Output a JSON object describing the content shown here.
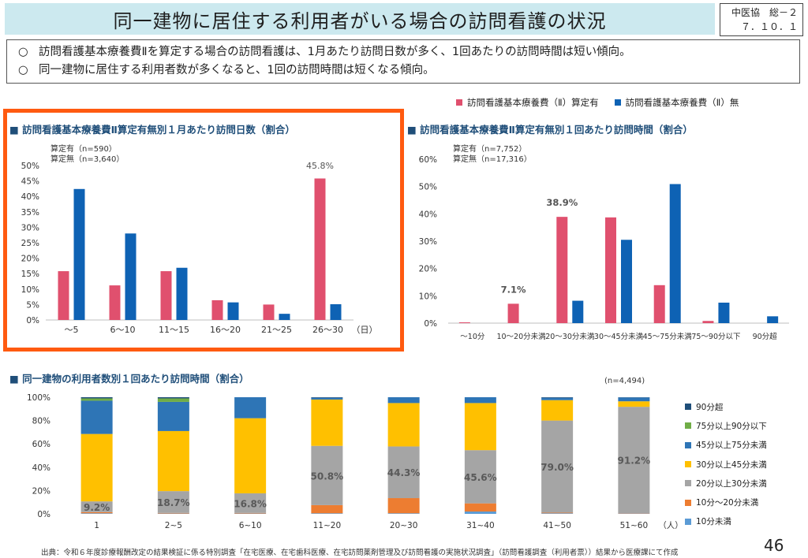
{
  "header": {
    "title": "同一建物に居住する利用者がいる場合の訪問看護の状況",
    "meeting_line1": "中医協　総－２",
    "meeting_line2": "７．１０．１"
  },
  "summary": {
    "bullet": "○",
    "lines": [
      "訪問看護基本療養費Ⅱを算定する場合の訪問看護は、1月あたり訪問日数が多く、1回あたりの訪問時間は短い傾向。",
      "同一建物に居住する利用者数が多くなると、1回の訪問時間は短くなる傾向。"
    ]
  },
  "legend_top": {
    "items": [
      {
        "label": "訪問看護基本療養費（Ⅱ）算定有",
        "color": "#e0506e"
      },
      {
        "label": "訪問看護基本療養費（Ⅱ）無",
        "color": "#0e62b4"
      }
    ]
  },
  "page_number": "46",
  "source": "出典：令和６年度診療報酬改定の結果検証に係る特別調査「在宅医療、在宅歯科医療、在宅訪問薬剤管理及び訪問看護の実施状況調査」（訪問看護調査（利用者票））結果から医療課にて作成",
  "chart_data": [
    {
      "type": "bar",
      "title": "■ 訪問看護基本療養費Ⅱ算定有無別１月あたり訪問日数（割合）",
      "n_labels": [
        "算定有（n=590）",
        "算定無（n=3,640）"
      ],
      "categories": [
        "～5",
        "6～10",
        "11～15",
        "16～20",
        "21～25",
        "26～30"
      ],
      "xunit": "（日）",
      "series": [
        {
          "name": "算定有",
          "color": "#e0506e",
          "values": [
            15.8,
            11.2,
            15.8,
            6.4,
            5.0,
            45.8
          ]
        },
        {
          "name": "算定無",
          "color": "#0e62b4",
          "values": [
            42.4,
            28.0,
            16.9,
            5.7,
            2.0,
            5.1
          ]
        }
      ],
      "ylim": [
        0,
        50
      ],
      "yticks": [
        0,
        5,
        10,
        15,
        20,
        25,
        30,
        35,
        40,
        45,
        50
      ],
      "ytick_labels": [
        "0%",
        "5%",
        "10%",
        "15%",
        "20%",
        "25%",
        "30%",
        "35%",
        "40%",
        "45%",
        "50%"
      ],
      "annotations": [
        {
          "series": 0,
          "index": 5,
          "text": "45.8%"
        }
      ]
    },
    {
      "type": "bar",
      "title": "■ 訪問看護基本療養費Ⅱ算定有無別１回あたり訪問時間（割合）",
      "n_labels": [
        "算定有（n=7,752）",
        "算定無（n=17,316）"
      ],
      "categories": [
        "～10分",
        "10～20分未満",
        "20～30分未満",
        "30～45分未満",
        "45～75分未満",
        "75～90分以下",
        "90分超"
      ],
      "series": [
        {
          "name": "算定有",
          "color": "#e0506e",
          "values": [
            0.3,
            7.1,
            38.9,
            38.7,
            13.9,
            0.8,
            0.0
          ]
        },
        {
          "name": "算定無",
          "color": "#0e62b4",
          "values": [
            0.0,
            0.0,
            8.2,
            30.5,
            50.9,
            7.5,
            2.5
          ]
        }
      ],
      "ylim": [
        0,
        60
      ],
      "yticks": [
        0,
        10,
        20,
        30,
        40,
        50,
        60
      ],
      "ytick_labels": [
        "0%",
        "10%",
        "20%",
        "30%",
        "40%",
        "50%",
        "60%"
      ],
      "annotations": [
        {
          "series": 0,
          "index": 1,
          "text": "7.1%"
        },
        {
          "series": 0,
          "index": 2,
          "text": "38.9%"
        }
      ]
    },
    {
      "type": "bar",
      "stacked": true,
      "title": "■ 同一建物の利用者数別１回あたり訪問時間（割合）",
      "n_label": "(n=4,494)",
      "categories": [
        "1",
        "2~5",
        "6~10",
        "11~20",
        "20~30",
        "31~40",
        "41~50",
        "51~60"
      ],
      "xunit": "（人）",
      "series": [
        {
          "name": "10分未満",
          "color": "#5b9bd5",
          "values": [
            0.5,
            0.3,
            0.3,
            0.5,
            0.5,
            2.0,
            0.5,
            0.3
          ]
        },
        {
          "name": "10分～20分未満",
          "color": "#ed7d31",
          "values": [
            1.0,
            0.5,
            0.5,
            7.0,
            13.0,
            7.0,
            0.5,
            0.3
          ]
        },
        {
          "name": "20分以上30分未満",
          "color": "#a5a5a5",
          "values": [
            9.2,
            18.7,
            16.8,
            50.8,
            44.3,
            45.6,
            79.0,
            91.2
          ]
        },
        {
          "name": "30分以上45分未満",
          "color": "#ffc000",
          "values": [
            57.8,
            51.5,
            64.4,
            39.7,
            37.2,
            40.4,
            17.5,
            4.7
          ]
        },
        {
          "name": "45分以上75分未満",
          "color": "#2e75b6",
          "values": [
            28.5,
            25.0,
            18.0,
            1.5,
            5.0,
            5.0,
            2.0,
            3.3
          ]
        },
        {
          "name": "75分以上90分以下",
          "color": "#70ad47",
          "values": [
            2.0,
            3.0,
            0.0,
            0.0,
            0.0,
            0.0,
            0.0,
            0.0
          ]
        },
        {
          "name": "90分超",
          "color": "#1f4e79",
          "values": [
            1.0,
            1.0,
            0.0,
            0.5,
            0.0,
            0.0,
            0.5,
            0.2
          ]
        }
      ],
      "ylim": [
        0,
        100
      ],
      "yticks": [
        0,
        20,
        40,
        60,
        80,
        100
      ],
      "ytick_labels": [
        "0%",
        "20%",
        "40%",
        "60%",
        "80%",
        "100%"
      ],
      "data_labels": [
        "9.2%",
        "18.7%",
        "16.8%",
        "50.8%",
        "44.3%",
        "45.6%",
        "79.0%",
        "91.2%"
      ]
    }
  ]
}
